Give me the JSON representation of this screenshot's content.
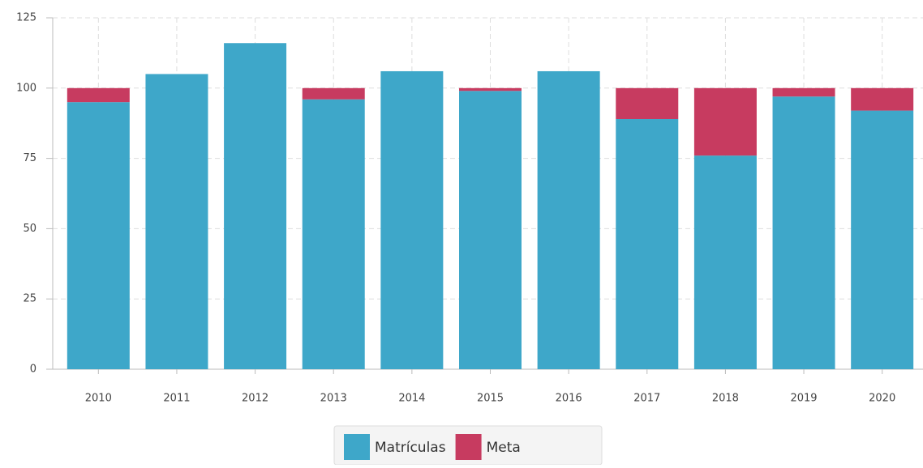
{
  "chart_data": {
    "type": "stacked_bar",
    "categories": [
      "2010",
      "2011",
      "2012",
      "2013",
      "2014",
      "2015",
      "2016",
      "2017",
      "2018",
      "2019",
      "2020"
    ],
    "series": [
      {
        "name": "Matrículas",
        "color": "#3ea7c9",
        "values": [
          95,
          105,
          116,
          96,
          106,
          99,
          106,
          89,
          76,
          97,
          92
        ]
      },
      {
        "name": "Meta",
        "color": "#c73b60",
        "values": [
          5,
          0,
          0,
          4,
          0,
          1,
          0,
          11,
          24,
          3,
          8
        ]
      }
    ],
    "ylim": [
      0,
      125
    ],
    "yticks": [
      0,
      25,
      50,
      75,
      100,
      125
    ],
    "grid": true,
    "legend": "bottom"
  }
}
